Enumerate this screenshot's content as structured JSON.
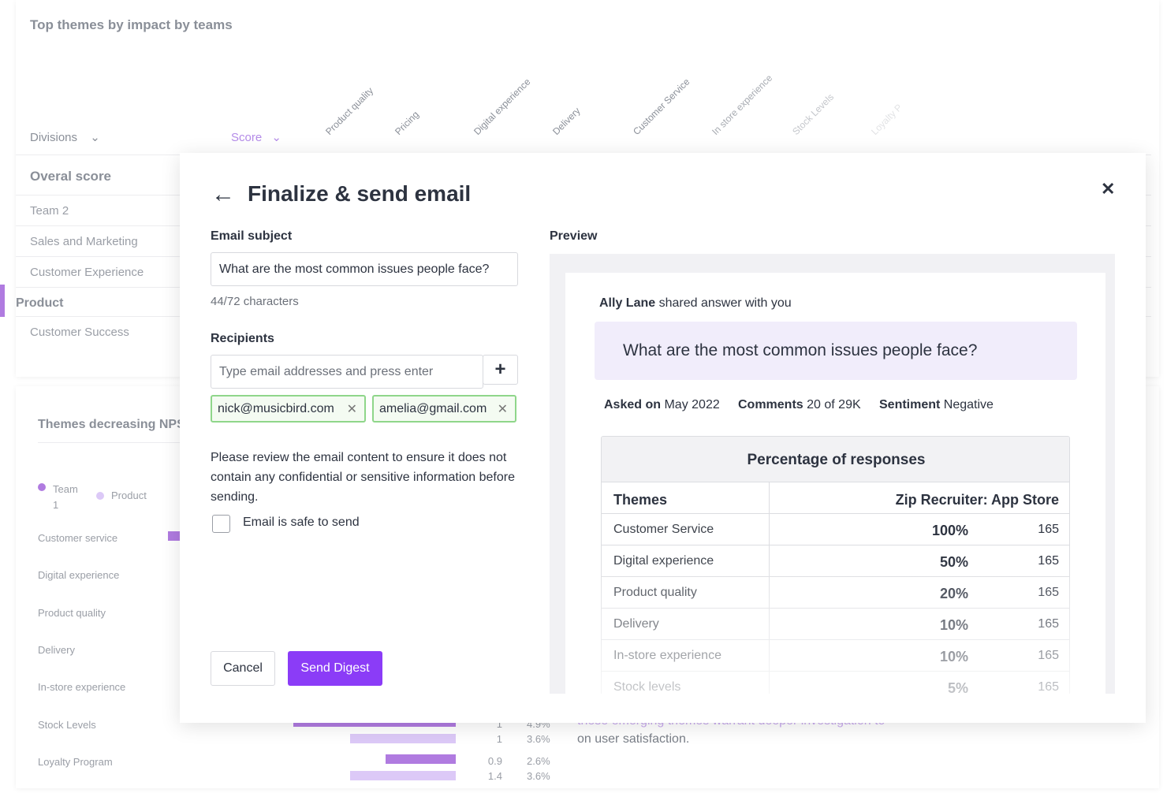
{
  "background": {
    "title": "Top themes by impact by teams",
    "divisions_label": "Divisions",
    "score_label": "Score",
    "columns": [
      "Product quality",
      "Pricing",
      "Digital experience",
      "Delivery",
      "Customer Service",
      "In store experience",
      "Stock Levels",
      "Loyalty P"
    ],
    "overall_label": "Overal score",
    "rows": [
      "Team 2",
      "Sales and Marketing",
      "Customer Experience",
      "Product",
      "Customer Success"
    ],
    "decreasing_title": "Themes decreasing NPS",
    "legend": [
      "Team 1",
      "Product"
    ],
    "themes": [
      "Customer service",
      "Digital experience",
      "Product quality",
      "Delivery",
      "In-store experience",
      "Stock Levels",
      "Loyalty Program"
    ],
    "stock_values": [
      [
        "1",
        "4.9%"
      ],
      [
        "1",
        "3.6%"
      ]
    ],
    "loyalty_values": [
      [
        "0.9",
        "2.6%"
      ],
      [
        "1.4",
        "3.6%"
      ]
    ],
    "insight_lines": [
      "these emerging themes warrant deeper investigation to",
      "on user satisfaction."
    ]
  },
  "modal": {
    "title": "Finalize & send email",
    "subject_label": "Email subject",
    "subject": "What are the most common issues people face?",
    "char_count": "44/72 characters",
    "recipients_label": "Recipients",
    "recipients_placeholder": "Type email addresses and press enter",
    "recipients": [
      "nick@musicbird.com",
      "amelia@gmail.com"
    ],
    "notice": "Please review the email content to ensure it does not contain any confidential or sensitive information before sending.",
    "checkbox_label": "Email is safe to send",
    "cancel": "Cancel",
    "send": "Send Digest",
    "preview_label": "Preview",
    "preview": {
      "sender": "Ally Lane",
      "shared_text": "shared answer with you",
      "question": "What are the most common issues people face?",
      "meta": [
        {
          "label": "Asked on",
          "value": "May 2022"
        },
        {
          "label": "Comments",
          "value": "20 of 29K"
        },
        {
          "label": "Sentiment",
          "value": "Negative"
        }
      ],
      "table": {
        "title": "Percentage of responses",
        "headers": [
          "Themes",
          "Zip Recruiter: App Store"
        ],
        "rows": [
          [
            "Customer Service",
            "100%",
            "165"
          ],
          [
            "Digital experience",
            "50%",
            "165"
          ],
          [
            "Product quality",
            "20%",
            "165"
          ],
          [
            "Delivery",
            "10%",
            "165"
          ],
          [
            "In-store experience",
            "10%",
            "165"
          ],
          [
            "Stock levels",
            "5%",
            "165"
          ]
        ]
      }
    }
  }
}
